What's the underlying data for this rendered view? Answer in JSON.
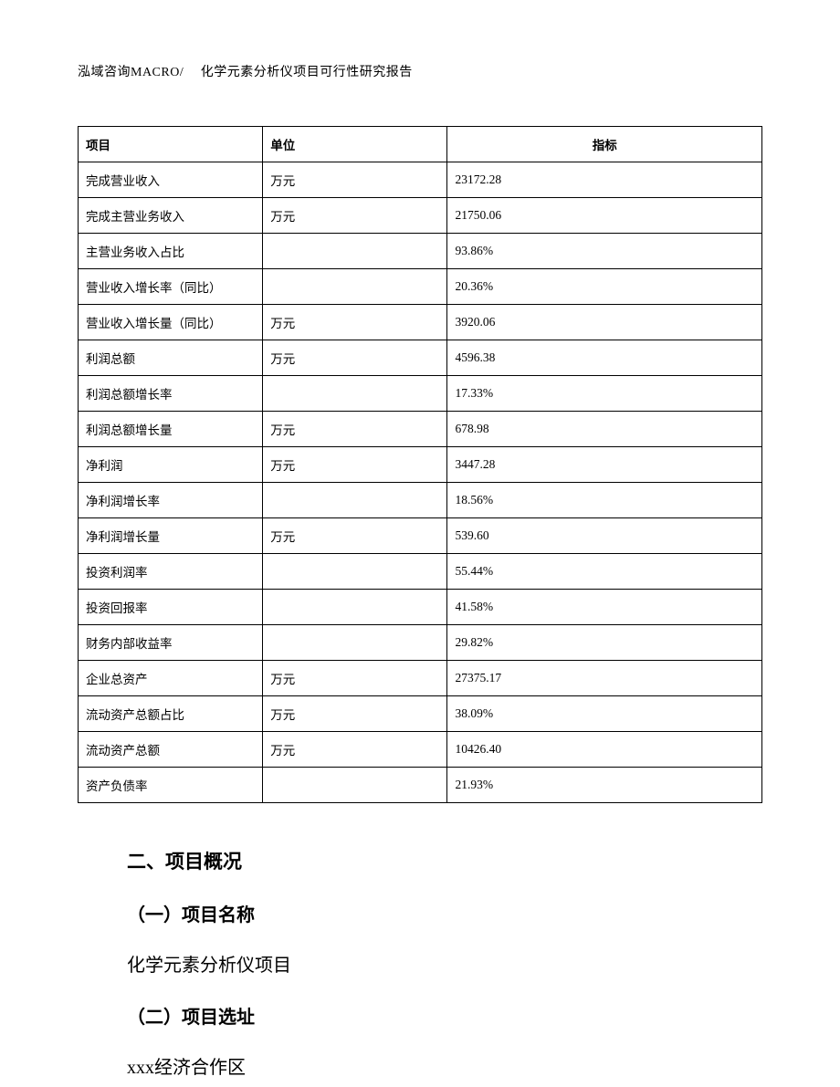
{
  "header": {
    "text": "泓域咨询MACRO/　 化学元素分析仪项目可行性研究报告"
  },
  "table": {
    "columns": [
      "项目",
      "单位",
      "指标"
    ],
    "rows": [
      [
        "完成营业收入",
        "万元",
        "23172.28"
      ],
      [
        "完成主营业务收入",
        "万元",
        "21750.06"
      ],
      [
        "主营业务收入占比",
        "",
        "93.86%"
      ],
      [
        "营业收入增长率（同比）",
        "",
        "20.36%"
      ],
      [
        "营业收入增长量（同比）",
        "万元",
        "3920.06"
      ],
      [
        "利润总额",
        "万元",
        "4596.38"
      ],
      [
        "利润总额增长率",
        "",
        "17.33%"
      ],
      [
        "利润总额增长量",
        "万元",
        "678.98"
      ],
      [
        "净利润",
        "万元",
        "3447.28"
      ],
      [
        "净利润增长率",
        "",
        "18.56%"
      ],
      [
        "净利润增长量",
        "万元",
        "539.60"
      ],
      [
        "投资利润率",
        "",
        "55.44%"
      ],
      [
        "投资回报率",
        "",
        "41.58%"
      ],
      [
        "财务内部收益率",
        "",
        "29.82%"
      ],
      [
        "企业总资产",
        "万元",
        "27375.17"
      ],
      [
        "流动资产总额占比",
        "万元",
        "38.09%"
      ],
      [
        "流动资产总额",
        "万元",
        "10426.40"
      ],
      [
        "资产负债率",
        "",
        "21.93%"
      ]
    ]
  },
  "sections": {
    "heading2": "二、项目概况",
    "sub1": "（一）项目名称",
    "body1": "化学元素分析仪项目",
    "sub2": "（二）项目选址",
    "body2": "xxx经济合作区"
  }
}
